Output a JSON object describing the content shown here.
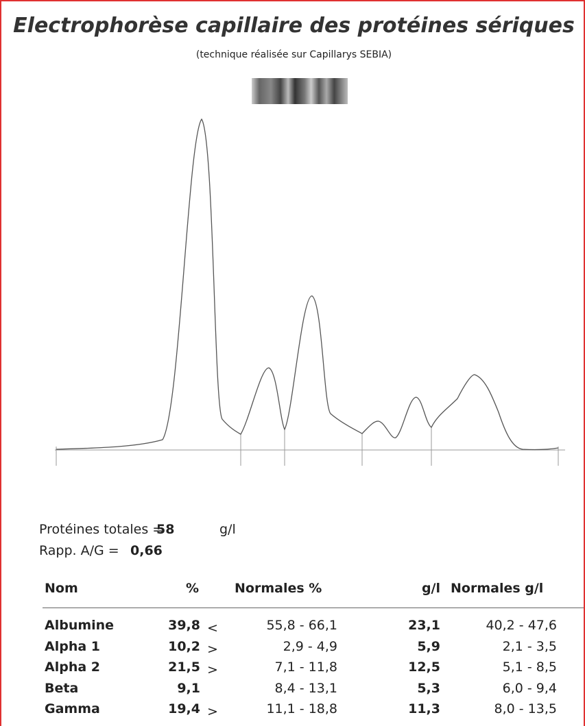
{
  "header": {
    "title": "Electrophorèse capillaire des protéines sériques",
    "subtitle": "(technique réalisée sur Capillarys SEBIA)"
  },
  "summary": {
    "total_label": "Protéines totales =",
    "total_value": "58",
    "total_unit": "g/l",
    "ratio_label": "Rapp. A/G =",
    "ratio_value": "0,66"
  },
  "table": {
    "headers": [
      "Nom",
      "%",
      "Normales %",
      "g/l",
      "Normales g/l"
    ],
    "rows": [
      [
        "Albumine",
        "39,8",
        "<",
        "55,8 - 66,1",
        "23,1",
        "40,2 - 47,6"
      ],
      [
        "Alpha 1",
        "10,2",
        ">",
        "2,9 - 4,9",
        "5,9",
        "2,1 - 3,5"
      ],
      [
        "Alpha 2",
        "21,5",
        ">",
        "7,1 - 11,8",
        "12,5",
        "5,1 - 8,5"
      ],
      [
        "Beta",
        "9,1",
        null,
        "8,4 - 13,1",
        "5,3",
        "6,0 - 9,4"
      ],
      [
        "Gamma",
        "19,4",
        ">",
        "11,1 - 18,8",
        "11,3",
        "8,0 - 13,5"
      ]
    ]
  }
}
